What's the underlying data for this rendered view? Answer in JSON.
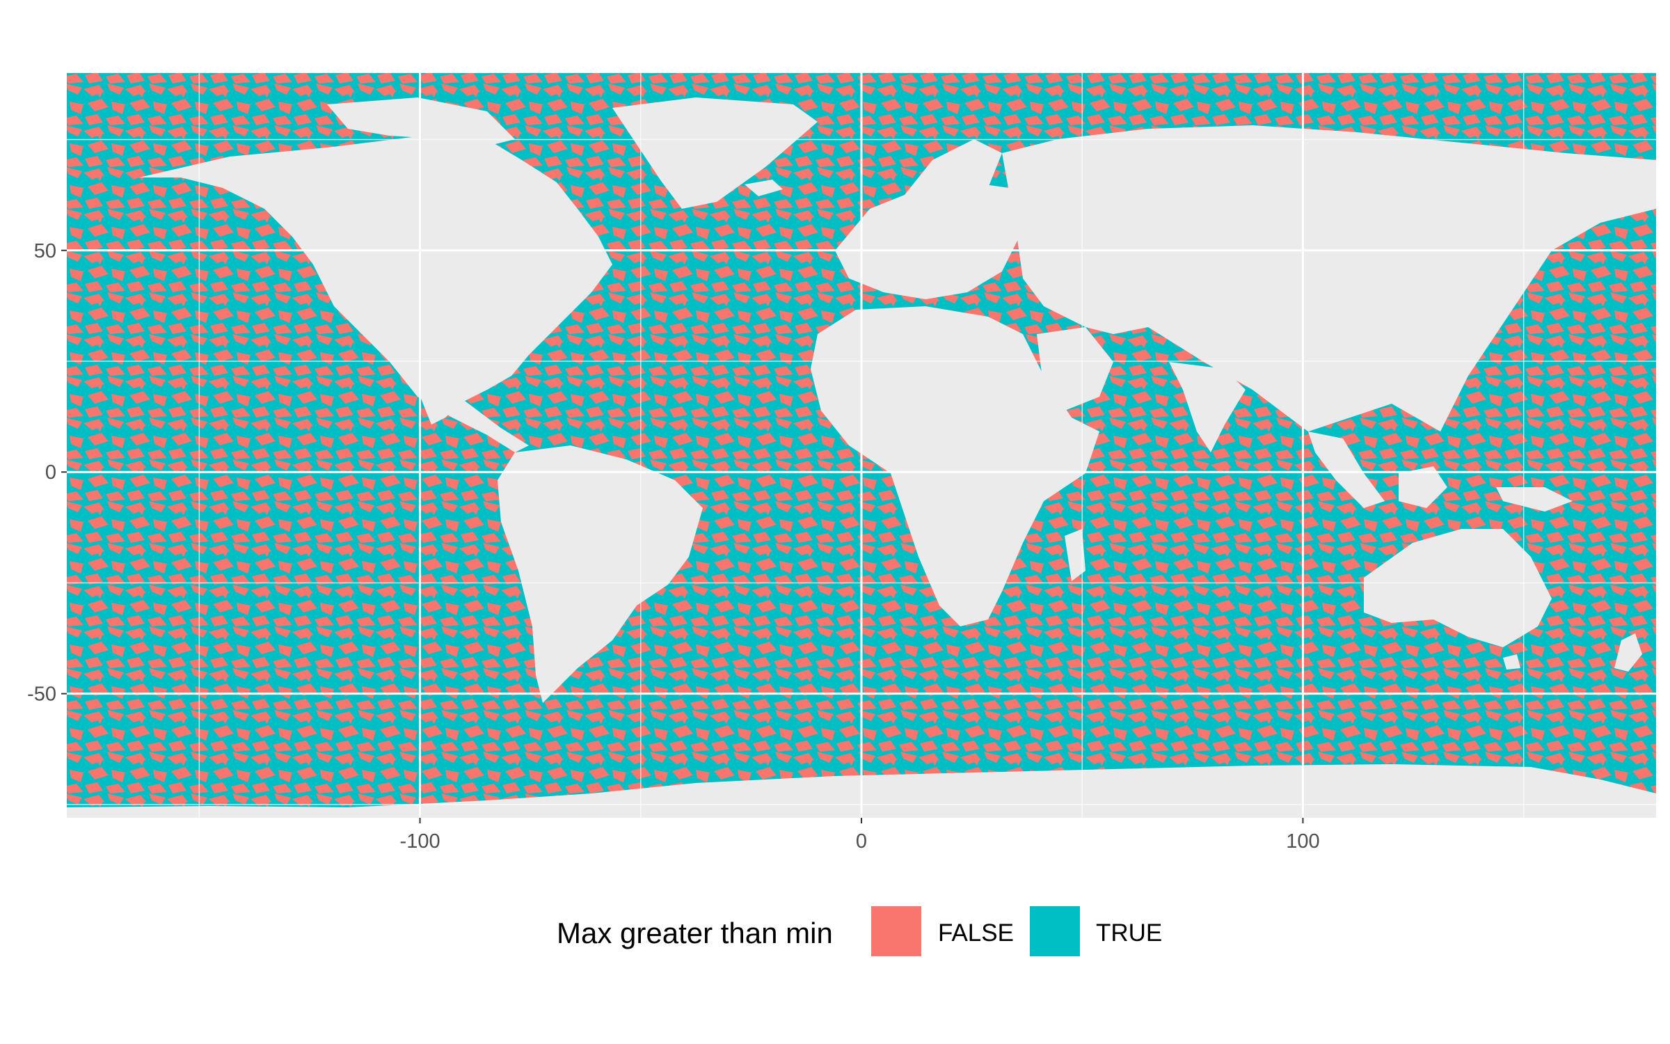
{
  "chart_data": {
    "type": "heatmap",
    "map_kind": "global raster, equirectangular projection",
    "title": "",
    "xlabel": "",
    "ylabel": "",
    "xlim": [
      -180,
      180
    ],
    "ylim": [
      -78,
      90
    ],
    "x_ticks": [
      -100,
      0,
      100
    ],
    "x_tick_labels": [
      "-100",
      "0",
      "100"
    ],
    "y_ticks": [
      -50,
      0,
      50
    ],
    "y_tick_labels": [
      "-50",
      "0",
      "50"
    ],
    "grid": true,
    "panel_background": "#ebebeb",
    "grid_color": "#ffffff",
    "legend": {
      "title": "Max greater than min",
      "position": "bottom",
      "entries": [
        {
          "label": "FALSE",
          "color": "#F8766D"
        },
        {
          "label": "TRUE",
          "color": "#00BFC4"
        }
      ]
    },
    "coverage": "ocean cells only; land shown as panel background",
    "dominant_value": "mixed FALSE/TRUE across all oceans"
  }
}
